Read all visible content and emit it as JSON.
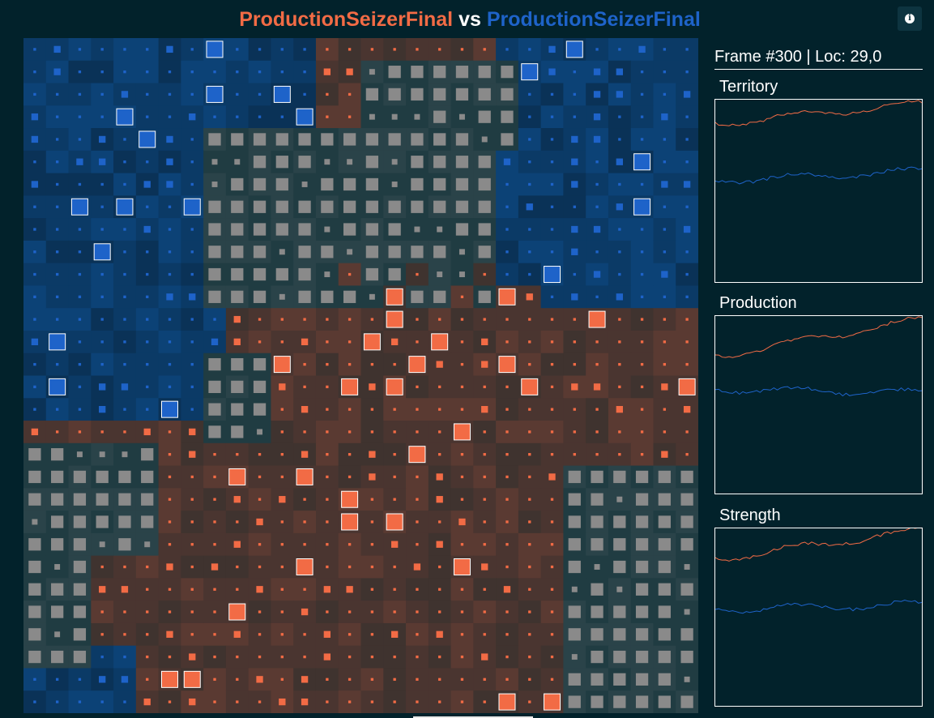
{
  "title": {
    "player1": "ProductionSeizerFinal",
    "vs": "vs",
    "player2": "ProductionSeizerFinal"
  },
  "info_icon": "info-circle-icon",
  "frame_label": "Frame #300 | Loc: 29,0",
  "stats": {
    "territory": {
      "label": "Territory"
    },
    "production": {
      "label": "Production"
    },
    "strength": {
      "label": "Strength"
    }
  },
  "colors": {
    "background": "#02222b",
    "player1": "#f26b45",
    "player2": "#1e63c9",
    "neutral": "#8a8a8a",
    "player1_owned_bg": "#5a3a32",
    "player2_owned_bg": "#0b3a66"
  },
  "map": {
    "width": 30,
    "height": 30
  }
}
